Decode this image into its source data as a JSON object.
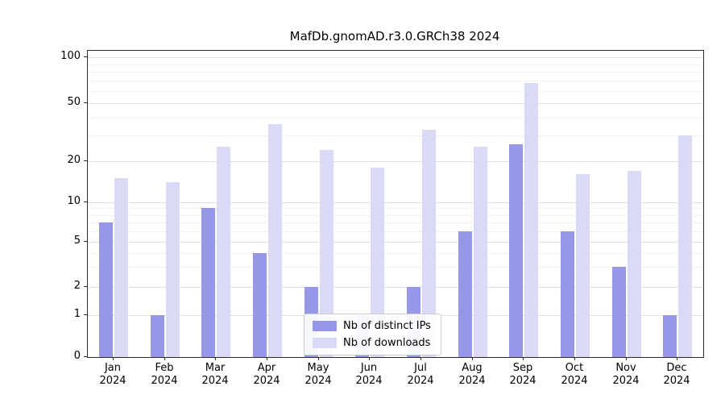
{
  "chart_data": {
    "type": "bar",
    "title": "MafDb.gnomAD.r3.0.GRCh38 2024",
    "xlabel": "",
    "ylabel": "",
    "yscale": "symlog",
    "ylim": [
      0,
      100
    ],
    "yticks": [
      0,
      1,
      2,
      5,
      10,
      20,
      50,
      100
    ],
    "grid": true,
    "legend_position": "bottom-center-inside",
    "categories": [
      "Jan 2024",
      "Feb 2024",
      "Mar 2024",
      "Apr 2024",
      "May 2024",
      "Jun 2024",
      "Jul 2024",
      "Aug 2024",
      "Sep 2024",
      "Oct 2024",
      "Nov 2024",
      "Dec 2024"
    ],
    "series": [
      {
        "name": "Nb of distinct IPs",
        "key": "distinct-ips",
        "color": "#9797e8",
        "values": [
          7,
          1,
          9,
          4,
          2,
          1,
          2,
          6,
          26,
          6,
          3,
          1
        ]
      },
      {
        "name": "Nb of downloads",
        "key": "downloads",
        "color": "#dadaf6",
        "values": [
          15,
          14,
          25,
          36,
          24,
          18,
          33,
          25,
          68,
          16,
          17,
          30
        ]
      }
    ]
  }
}
